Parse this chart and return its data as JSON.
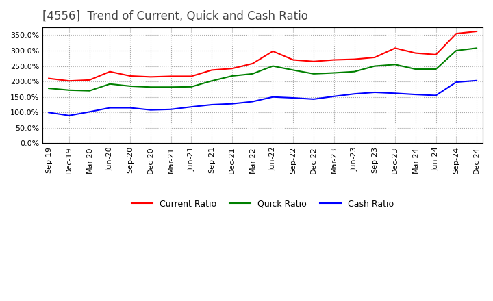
{
  "title": "[4556]  Trend of Current, Quick and Cash Ratio",
  "x_labels": [
    "Sep-19",
    "Dec-19",
    "Mar-20",
    "Jun-20",
    "Sep-20",
    "Dec-20",
    "Mar-21",
    "Jun-21",
    "Sep-21",
    "Dec-21",
    "Mar-22",
    "Jun-22",
    "Sep-22",
    "Dec-22",
    "Mar-23",
    "Jun-23",
    "Sep-23",
    "Dec-23",
    "Mar-24",
    "Jun-24",
    "Sep-24",
    "Dec-24"
  ],
  "current_ratio": [
    210,
    202,
    205,
    232,
    218,
    215,
    217,
    217,
    237,
    242,
    258,
    298,
    270,
    265,
    270,
    272,
    278,
    308,
    292,
    287,
    355,
    362
  ],
  "quick_ratio": [
    178,
    172,
    170,
    192,
    185,
    182,
    182,
    183,
    202,
    218,
    225,
    250,
    237,
    225,
    228,
    232,
    250,
    255,
    240,
    240,
    300,
    308
  ],
  "cash_ratio": [
    100,
    90,
    102,
    115,
    115,
    108,
    110,
    118,
    125,
    128,
    135,
    150,
    147,
    143,
    152,
    160,
    165,
    162,
    158,
    155,
    198,
    203
  ],
  "ylim": [
    0,
    375
  ],
  "yticks": [
    0,
    50,
    100,
    150,
    200,
    250,
    300,
    350
  ],
  "current_color": "#ff0000",
  "quick_color": "#008000",
  "cash_color": "#0000ff",
  "background_color": "#ffffff",
  "plot_bg_color": "#ffffff",
  "grid_color": "#aaaaaa",
  "title_fontsize": 12,
  "tick_fontsize": 8,
  "legend_fontsize": 9
}
